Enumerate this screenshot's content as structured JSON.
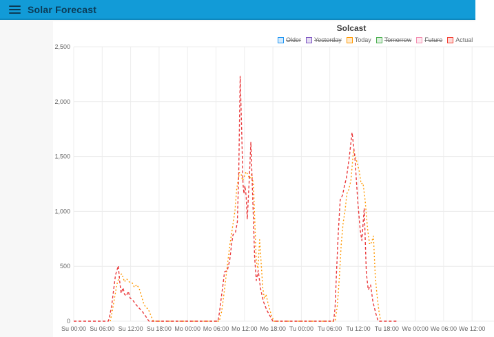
{
  "header": {
    "title": "Solar Forecast",
    "menu_icon": "hamburger-icon"
  },
  "colors": {
    "appbar_bg": "#129bd7",
    "appbar_text": "#0c3a55",
    "page_bg": "#f7f7f7",
    "card_bg": "#ffffff",
    "grid": "#ececec",
    "tick_text": "#666666",
    "today_line": "#ff9800",
    "actual_line": "#ea3a3c"
  },
  "chart_data": {
    "type": "line",
    "title": "Solcast",
    "x_unit": "hours since Sunday 00:00",
    "x_tick_hours": [
      0,
      6,
      12,
      18,
      24,
      30,
      36,
      42,
      48,
      54,
      60,
      66,
      72,
      78,
      84
    ],
    "x_tick_labels": [
      "Su 00:00",
      "Su 06:00",
      "Su 12:00",
      "Su 18:00",
      "Mo 00:00",
      "Mo 06:00",
      "Mo 12:00",
      "Mo 18:00",
      "Tu 00:00",
      "Tu 06:00",
      "Tu 12:00",
      "Tu 18:00",
      "We 00:00",
      "We 06:00",
      "We 12:00"
    ],
    "ylim": [
      0,
      2500
    ],
    "y_ticks": [
      0,
      500,
      1000,
      1500,
      2000,
      2500
    ],
    "y_tick_labels": [
      "0",
      "500",
      "1,000",
      "1,500",
      "2,000",
      "2,500"
    ],
    "grid": true,
    "legend": {
      "position": "top",
      "items": [
        {
          "label": "Older",
          "color": "#2196f3",
          "enabled": false
        },
        {
          "label": "Yesterday",
          "color": "#7e57c2",
          "enabled": false
        },
        {
          "label": "Today",
          "color": "#ff9800",
          "enabled": true
        },
        {
          "label": "Tomorrow",
          "color": "#4caf50",
          "enabled": false
        },
        {
          "label": "Future",
          "color": "#f48fb1",
          "enabled": false
        },
        {
          "label": "Actual",
          "color": "#f44336",
          "enabled": true
        }
      ]
    },
    "series": [
      {
        "name": "Today",
        "color": "#ff9800",
        "dash": "2 3",
        "points": [
          [
            7.7,
            0
          ],
          [
            8.1,
            85
          ],
          [
            8.6,
            210
          ],
          [
            9.1,
            335
          ],
          [
            9.7,
            418
          ],
          [
            10.15,
            432
          ],
          [
            10.7,
            358
          ],
          [
            11.15,
            386
          ],
          [
            11.7,
            358
          ],
          [
            12.3,
            350
          ],
          [
            12.8,
            308
          ],
          [
            13.3,
            333
          ],
          [
            13.8,
            298
          ],
          [
            14.3,
            228
          ],
          [
            14.8,
            152
          ],
          [
            15.3,
            122
          ],
          [
            15.7,
            112
          ],
          [
            16.2,
            58
          ],
          [
            16.8,
            0
          ],
          [
            30.7,
            0
          ],
          [
            31.2,
            90
          ],
          [
            31.8,
            290
          ],
          [
            32.4,
            510
          ],
          [
            32.9,
            690
          ],
          [
            33.5,
            860
          ],
          [
            34.0,
            1005
          ],
          [
            34.35,
            1195
          ],
          [
            34.65,
            1282
          ],
          [
            34.95,
            1355
          ],
          [
            35.3,
            1338
          ],
          [
            35.6,
            1282
          ],
          [
            35.95,
            1312
          ],
          [
            36.3,
            1362
          ],
          [
            36.7,
            1338
          ],
          [
            37.1,
            1298
          ],
          [
            37.5,
            1338
          ],
          [
            37.9,
            1245
          ],
          [
            38.2,
            895
          ],
          [
            38.5,
            545
          ],
          [
            38.85,
            478
          ],
          [
            39.2,
            742
          ],
          [
            39.55,
            515
          ],
          [
            39.85,
            308
          ],
          [
            40.2,
            205
          ],
          [
            40.55,
            245
          ],
          [
            41.0,
            158
          ],
          [
            41.6,
            66
          ],
          [
            42.2,
            0
          ],
          [
            55.1,
            0
          ],
          [
            55.6,
            145
          ],
          [
            56.0,
            395
          ],
          [
            56.4,
            695
          ],
          [
            56.8,
            895
          ],
          [
            57.2,
            1000
          ],
          [
            57.6,
            1162
          ],
          [
            58.0,
            1198
          ],
          [
            58.45,
            1282
          ],
          [
            59.0,
            1558
          ],
          [
            59.4,
            1498
          ],
          [
            59.8,
            1438
          ],
          [
            60.2,
            1368
          ],
          [
            60.6,
            1252
          ],
          [
            61.0,
            1258
          ],
          [
            61.45,
            1098
          ],
          [
            61.95,
            845
          ],
          [
            62.4,
            698
          ],
          [
            62.8,
            718
          ],
          [
            63.2,
            775
          ],
          [
            63.6,
            395
          ],
          [
            63.95,
            238
          ],
          [
            64.35,
            95
          ],
          [
            64.75,
            0
          ]
        ]
      },
      {
        "name": "Actual",
        "color": "#ea3a3c",
        "dash": "4 3",
        "points": [
          [
            0,
            0
          ],
          [
            7.3,
            0
          ],
          [
            7.6,
            50
          ],
          [
            8.0,
            140
          ],
          [
            8.4,
            280
          ],
          [
            8.8,
            420
          ],
          [
            9.4,
            505
          ],
          [
            9.7,
            360
          ],
          [
            10.0,
            255
          ],
          [
            10.4,
            305
          ],
          [
            10.7,
            245
          ],
          [
            11.1,
            230
          ],
          [
            11.5,
            272
          ],
          [
            11.9,
            210
          ],
          [
            12.4,
            195
          ],
          [
            13.0,
            158
          ],
          [
            13.6,
            128
          ],
          [
            14.4,
            92
          ],
          [
            15.1,
            50
          ],
          [
            15.7,
            10
          ],
          [
            15.9,
            0
          ],
          [
            30.4,
            0
          ],
          [
            30.7,
            70
          ],
          [
            31.1,
            210
          ],
          [
            31.5,
            340
          ],
          [
            31.8,
            450
          ],
          [
            32.4,
            462
          ],
          [
            32.9,
            560
          ],
          [
            33.3,
            705
          ],
          [
            33.6,
            790
          ],
          [
            34.1,
            805
          ],
          [
            34.5,
            905
          ],
          [
            34.8,
            1350
          ],
          [
            35.1,
            2230
          ],
          [
            35.4,
            1750
          ],
          [
            35.7,
            1250
          ],
          [
            35.9,
            1160
          ],
          [
            36.1,
            1235
          ],
          [
            36.35,
            1145
          ],
          [
            36.6,
            930
          ],
          [
            37.0,
            1280
          ],
          [
            37.35,
            1630
          ],
          [
            37.8,
            1050
          ],
          [
            38.15,
            580
          ],
          [
            38.5,
            370
          ],
          [
            38.9,
            462
          ],
          [
            39.4,
            295
          ],
          [
            40.0,
            180
          ],
          [
            40.7,
            100
          ],
          [
            41.5,
            38
          ],
          [
            42.0,
            0
          ],
          [
            54.8,
            0
          ],
          [
            55.1,
            120
          ],
          [
            55.4,
            430
          ],
          [
            55.8,
            820
          ],
          [
            56.2,
            1105
          ],
          [
            56.7,
            1150
          ],
          [
            57.1,
            1235
          ],
          [
            57.5,
            1305
          ],
          [
            58.1,
            1490
          ],
          [
            58.7,
            1720
          ],
          [
            59.3,
            1480
          ],
          [
            59.9,
            1090
          ],
          [
            60.4,
            830
          ],
          [
            60.75,
            735
          ],
          [
            61.25,
            1030
          ],
          [
            61.7,
            440
          ],
          [
            62.1,
            285
          ],
          [
            62.6,
            330
          ],
          [
            63.1,
            175
          ],
          [
            63.7,
            70
          ],
          [
            64.2,
            0
          ],
          [
            68.1,
            0
          ]
        ]
      }
    ]
  }
}
